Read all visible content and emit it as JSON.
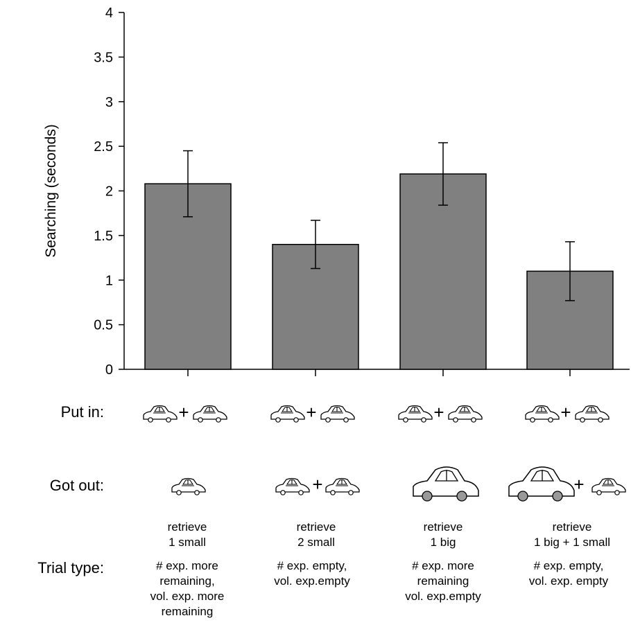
{
  "chart_data": {
    "type": "bar",
    "ylabel": "Searching (seconds)",
    "xlabel": "",
    "ylim": [
      0,
      4
    ],
    "yticks": [
      "0",
      "0.5",
      "1",
      "1.5",
      "2",
      "2.5",
      "3",
      "3.5",
      "4"
    ],
    "categories": [
      "retrieve 1 small",
      "retrieve 2 small",
      "retrieve 1 big",
      "retrieve 1 big + 1 small"
    ],
    "values": [
      2.08,
      1.4,
      2.19,
      1.1
    ],
    "errors": [
      0.37,
      0.27,
      0.35,
      0.33
    ],
    "bar_color": "#808080",
    "grid": false
  },
  "rows": {
    "put_in_label": "Put in:",
    "got_out_label": "Got out:",
    "trial_type_label": "Trial type:"
  },
  "conditions": [
    {
      "retrieve": [
        "retrieve",
        "1 small"
      ],
      "trial_type": [
        "# exp. more",
        "remaining,",
        "vol. exp. more",
        "remaining"
      ],
      "put_in": [
        "small",
        "small"
      ],
      "got_out": [
        "small"
      ]
    },
    {
      "retrieve": [
        "retrieve",
        "2 small"
      ],
      "trial_type": [
        "# exp. empty,",
        "vol. exp.empty"
      ],
      "put_in": [
        "small",
        "small"
      ],
      "got_out": [
        "small",
        "small"
      ]
    },
    {
      "retrieve": [
        "retrieve",
        "1 big"
      ],
      "trial_type": [
        "# exp. more",
        "remaining",
        "vol. exp.empty"
      ],
      "put_in": [
        "small",
        "small"
      ],
      "got_out": [
        "big"
      ]
    },
    {
      "retrieve": [
        "retrieve",
        "1 big + 1 small"
      ],
      "trial_type": [
        "# exp. empty,",
        "vol. exp. empty"
      ],
      "put_in": [
        "small",
        "small"
      ],
      "got_out": [
        "big",
        "small"
      ]
    }
  ],
  "icons": {
    "plus": "+",
    "small_car": "small-car-icon",
    "big_car": "big-car-icon"
  }
}
